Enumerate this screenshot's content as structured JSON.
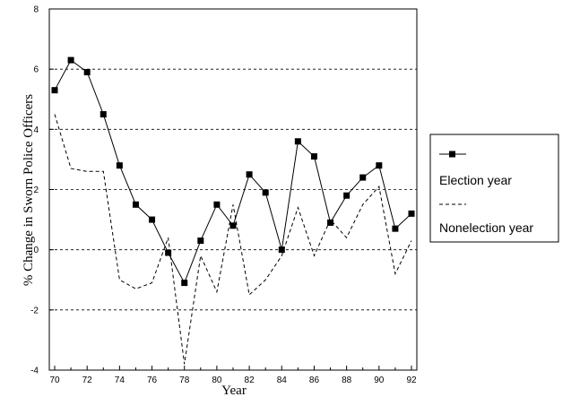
{
  "chart_data": {
    "type": "line",
    "title": "",
    "xlabel": "Year",
    "ylabel": "% Change in Sworn Police Officers",
    "xlim": [
      70,
      92
    ],
    "ylim": [
      -4,
      8
    ],
    "x_ticks": [
      "70",
      "72",
      "74",
      "76",
      "78",
      "80",
      "82",
      "84",
      "86",
      "88",
      "90",
      "92"
    ],
    "y_ticks": [
      "-4",
      "-2",
      "0",
      "2",
      "4",
      "6",
      "8"
    ],
    "grid": "horizontal dashed at -2, 0, 2, 4, 6",
    "legend_position": "right",
    "x": [
      70,
      71,
      72,
      73,
      74,
      75,
      76,
      77,
      78,
      79,
      80,
      81,
      82,
      83,
      84,
      85,
      86,
      87,
      88,
      89,
      90,
      91,
      92
    ],
    "series": [
      {
        "name": "Election year",
        "style": "solid line with square markers",
        "values": [
          5.3,
          6.3,
          5.9,
          4.5,
          2.8,
          1.5,
          1.0,
          -0.1,
          -1.1,
          0.3,
          1.5,
          0.8,
          2.5,
          1.9,
          0.0,
          3.6,
          3.1,
          0.9,
          1.8,
          2.4,
          2.8,
          0.7,
          1.2
        ]
      },
      {
        "name": "Nonelection year",
        "style": "dashed line",
        "values": [
          4.5,
          2.7,
          2.6,
          2.6,
          -1.0,
          -1.3,
          -1.1,
          0.4,
          -3.8,
          -0.2,
          -1.4,
          1.5,
          -1.5,
          -1.0,
          -0.2,
          1.4,
          -0.2,
          1.0,
          0.4,
          1.5,
          2.1,
          -0.8,
          0.3
        ]
      }
    ]
  },
  "colors": {
    "line": "#000000",
    "marker": "#000000",
    "grid": "#000000"
  }
}
